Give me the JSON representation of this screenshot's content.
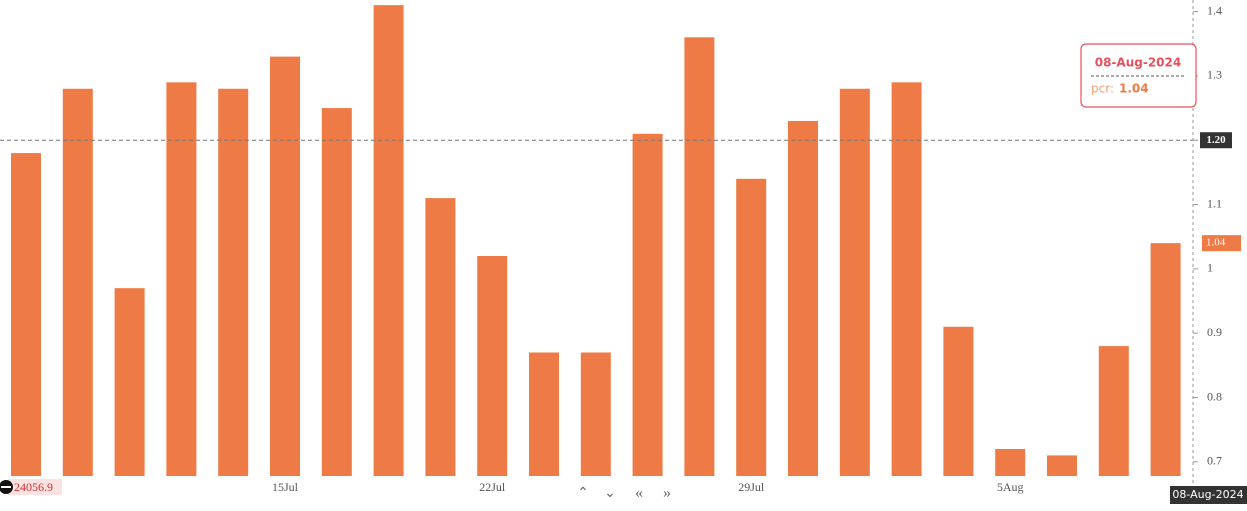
{
  "chart_data": {
    "type": "bar",
    "categories": [
      null,
      null,
      null,
      null,
      null,
      "15Jul",
      null,
      null,
      null,
      "22Jul",
      null,
      null,
      null,
      null,
      "29Jul",
      null,
      null,
      null,
      null,
      "5Aug",
      null,
      null,
      null
    ],
    "values": [
      1.18,
      1.28,
      0.97,
      1.29,
      1.28,
      1.33,
      1.25,
      1.41,
      1.11,
      1.02,
      0.87,
      0.87,
      1.21,
      1.36,
      1.14,
      1.23,
      1.28,
      1.29,
      0.91,
      0.72,
      0.71,
      0.88,
      1.04
    ],
    "color": "#ee7a45",
    "ylim": [
      0.678,
      1.418
    ],
    "yticks": [
      0.7,
      0.8,
      0.9,
      1,
      1.1,
      1.2,
      1.3,
      1.4
    ],
    "crosshair": {
      "value": 1.2,
      "label": "1.20"
    },
    "tooltip": {
      "title": "08-Aug-2024",
      "label": "pcr:"
    },
    "price_label": 24056.9
  }
}
